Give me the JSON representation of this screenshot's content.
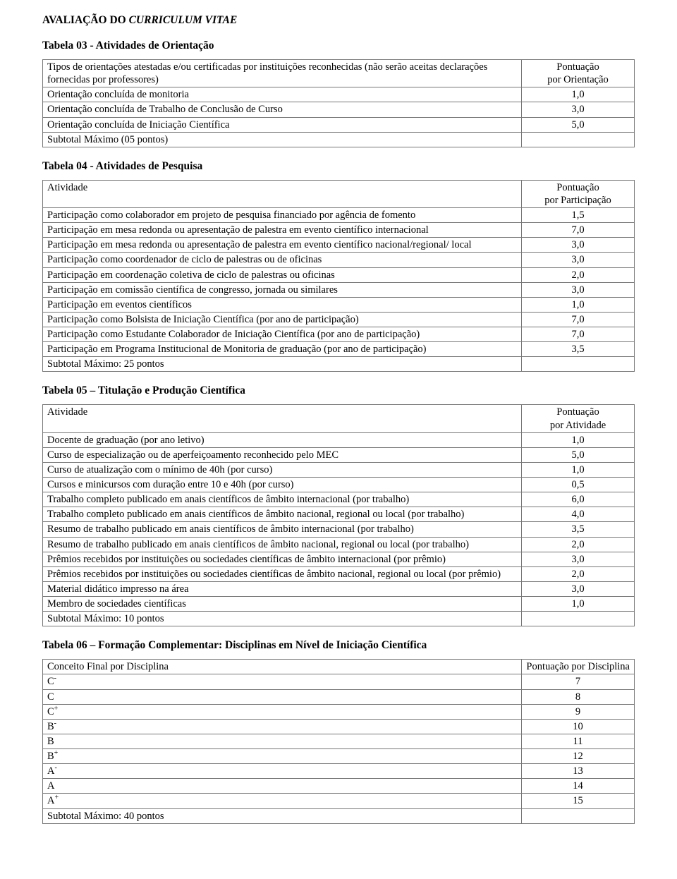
{
  "page_title": "AVALIAÇÃO DO CURRICULUM VITAE",
  "page_title_ital": "CURRICULUM VITAE",
  "table03": {
    "heading": "Tabela 03 - Atividades de Orientação",
    "head_left_l1": "Tipos de orientações atestadas e/ou certificadas por instituições reconhecidas (não serão aceitas declarações",
    "head_left_l2": "fornecidas por professores)",
    "head_right_l1": "Pontuação",
    "head_right_l2": "por Orientação",
    "rows": [
      {
        "label": "Orientação concluída de monitoria",
        "value": "1,0"
      },
      {
        "label": "Orientação concluída de Trabalho de Conclusão de Curso",
        "value": "3,0"
      },
      {
        "label": "Orientação concluída de Iniciação Científica",
        "value": "5,0"
      }
    ],
    "footer": "Subtotal Máximo (05 pontos)"
  },
  "table04": {
    "heading": "Tabela 04 - Atividades de Pesquisa",
    "head_left": "Atividade",
    "head_right_l1": "Pontuação",
    "head_right_l2": "por Participação",
    "rows": [
      {
        "label": "Participação como colaborador em projeto de pesquisa financiado por agência de fomento",
        "value": "1,5"
      },
      {
        "label": "Participação em mesa redonda ou apresentação de palestra em evento científico internacional",
        "value": "7,0"
      },
      {
        "label": "Participação em mesa redonda ou apresentação de palestra em evento científico nacional/regional/ local",
        "value": "3,0"
      },
      {
        "label": "Participação como coordenador de ciclo de palestras ou de oficinas",
        "value": "3,0"
      },
      {
        "label": "Participação em coordenação coletiva de ciclo de palestras ou oficinas",
        "value": "2,0"
      },
      {
        "label": "Participação em comissão científica de congresso, jornada ou similares",
        "value": "3,0"
      },
      {
        "label": "Participação em eventos científicos",
        "value": "1,0"
      },
      {
        "label": "Participação como Bolsista de Iniciação Científica (por ano de participação)",
        "value": "7,0"
      },
      {
        "label": "Participação como Estudante Colaborador de Iniciação Científica (por ano de participação)",
        "value": "7,0"
      },
      {
        "label": "Participação em Programa Institucional de Monitoria de graduação (por ano de participação)",
        "value": "3,5"
      }
    ],
    "footer": "Subtotal Máximo: 25 pontos"
  },
  "table05": {
    "heading": "Tabela 05 – Titulação e Produção Científica",
    "head_left": "Atividade",
    "head_right_l1": "Pontuação",
    "head_right_l2": "por Atividade",
    "rows": [
      {
        "label": "Docente de graduação (por ano letivo)",
        "value": "1,0"
      },
      {
        "label": "Curso de especialização ou de aperfeiçoamento reconhecido pelo MEC",
        "value": "5,0"
      },
      {
        "label": "Curso de atualização com o mínimo de 40h (por curso)",
        "value": "1,0"
      },
      {
        "label": "Cursos e minicursos com duração entre 10 e 40h (por curso)",
        "value": "0,5"
      },
      {
        "label": "Trabalho completo publicado em anais científicos de âmbito internacional (por trabalho)",
        "value": "6,0"
      },
      {
        "label": "Trabalho completo publicado em anais científicos de âmbito nacional, regional ou local (por trabalho)",
        "value": "4,0"
      },
      {
        "label": "Resumo de trabalho publicado em anais científicos de âmbito internacional (por trabalho)",
        "value": "3,5"
      },
      {
        "label": "Resumo de trabalho publicado em anais científicos de âmbito nacional, regional ou local (por trabalho)",
        "value": "2,0"
      },
      {
        "label": "Prêmios recebidos por instituições ou sociedades científicas de âmbito internacional (por prêmio)",
        "value": "3,0"
      },
      {
        "label": "Prêmios recebidos por instituições ou sociedades científicas de âmbito nacional, regional ou local (por prêmio)",
        "value": "2,0"
      },
      {
        "label": "Material didático impresso na área",
        "value": "3,0"
      },
      {
        "label": "Membro de sociedades científicas",
        "value": "1,0"
      }
    ],
    "footer": "Subtotal Máximo: 10 pontos"
  },
  "table06": {
    "heading": "Tabela 06 – Formação Complementar: Disciplinas em Nível de Iniciação Científica",
    "head_left": "Conceito Final por Disciplina",
    "head_right": "Pontuação por Disciplina",
    "rows": [
      {
        "base": "C",
        "sup": "-",
        "value": "7"
      },
      {
        "base": "C",
        "sup": "",
        "value": "8"
      },
      {
        "base": "C",
        "sup": "+",
        "value": "9"
      },
      {
        "base": "B",
        "sup": "-",
        "value": "10"
      },
      {
        "base": "B",
        "sup": "",
        "value": "11"
      },
      {
        "base": "B",
        "sup": "+",
        "value": "12"
      },
      {
        "base": "A",
        "sup": "-",
        "value": "13"
      },
      {
        "base": "A",
        "sup": "",
        "value": "14"
      },
      {
        "base": "A",
        "sup": "+",
        "value": "15"
      }
    ],
    "footer": "Subtotal Máximo: 40 pontos"
  }
}
